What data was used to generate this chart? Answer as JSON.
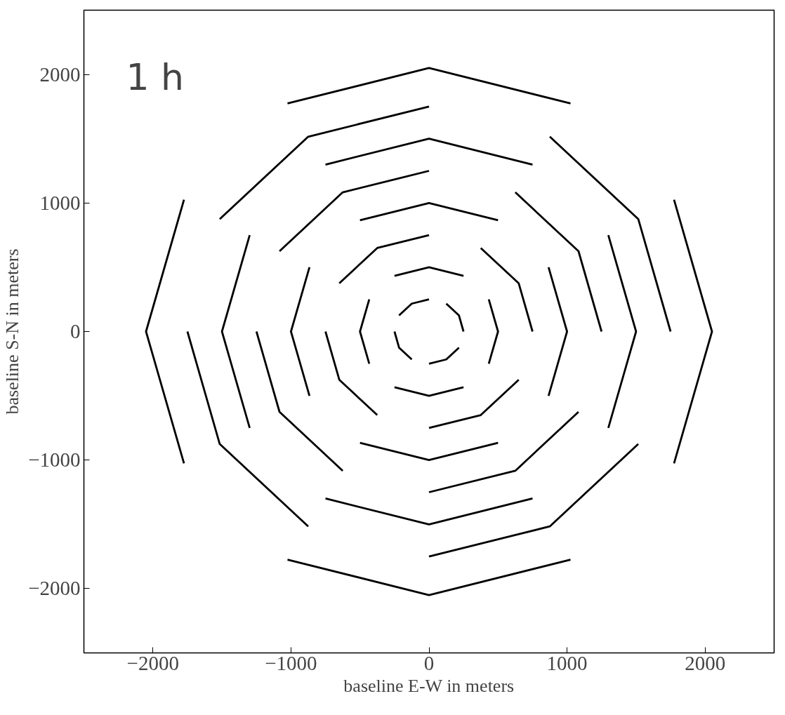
{
  "chart_data": {
    "type": "line",
    "xlabel": "baseline E-W in meters",
    "ylabel": "baseline S-N in meters",
    "annotations": [
      "1 h"
    ],
    "xlim": [
      -2500,
      2500
    ],
    "ylim": [
      -2500,
      2500
    ],
    "xticks": [
      {
        "value": -2000,
        "label": "−2000"
      },
      {
        "value": -1000,
        "label": "−1000"
      },
      0,
      1000,
      2000
    ],
    "yticks": [
      {
        "value": -2000,
        "label": "−2000"
      },
      {
        "value": -1000,
        "label": "−1000"
      },
      0,
      1000,
      2000
    ],
    "grid": false,
    "line_style": "solid",
    "marker": "none",
    "series": [
      {
        "color": "#000000",
        "x": [
          250,
          217,
          125,
          null,
          0,
          -125,
          -217,
          null,
          -250,
          -217,
          -125,
          null,
          0,
          125,
          217
        ],
        "values": [
          0,
          125,
          217,
          null,
          250,
          217,
          125,
          null,
          0,
          -125,
          -217,
          null,
          -250,
          -217,
          -125
        ]
      },
      {
        "color": "#000000",
        "x": [
          250,
          0,
          -250,
          null,
          -433,
          -500,
          -433,
          null,
          -250,
          0,
          250,
          null,
          433,
          500,
          433
        ],
        "values": [
          433,
          500,
          433,
          null,
          250,
          0,
          -250,
          null,
          -433,
          -500,
          -433,
          null,
          -250,
          0,
          250
        ]
      },
      {
        "color": "#000000",
        "x": [
          750,
          650,
          375,
          null,
          0,
          -375,
          -650,
          null,
          -750,
          -650,
          -375,
          null,
          0,
          375,
          650
        ],
        "values": [
          0,
          375,
          650,
          null,
          750,
          650,
          375,
          null,
          0,
          -375,
          -650,
          null,
          -750,
          -650,
          -375
        ]
      },
      {
        "color": "#000000",
        "x": [
          500,
          0,
          -500,
          null,
          -866,
          -1000,
          -866,
          null,
          -500,
          0,
          500,
          null,
          866,
          1000,
          866
        ],
        "values": [
          866,
          1000,
          866,
          null,
          500,
          0,
          -500,
          null,
          -866,
          -1000,
          -866,
          null,
          -500,
          0,
          500
        ]
      },
      {
        "color": "#000000",
        "x": [
          1250,
          1083,
          625,
          null,
          0,
          -625,
          -1083,
          null,
          -1250,
          -1083,
          -625,
          null,
          0,
          625,
          1083
        ],
        "values": [
          0,
          625,
          1083,
          null,
          1250,
          1083,
          625,
          null,
          0,
          -625,
          -1083,
          null,
          -1250,
          -1083,
          -625
        ]
      },
      {
        "color": "#000000",
        "x": [
          750,
          0,
          -750,
          null,
          -1299,
          -1500,
          -1299,
          null,
          -750,
          0,
          750,
          null,
          1299,
          1500,
          1299
        ],
        "values": [
          1299,
          1500,
          1299,
          null,
          750,
          0,
          -750,
          null,
          -1299,
          -1500,
          -1299,
          null,
          -750,
          0,
          750
        ]
      },
      {
        "color": "#000000",
        "x": [
          1750,
          1516,
          875,
          null,
          0,
          -875,
          -1516,
          null,
          -1750,
          -1516,
          -875,
          null,
          0,
          875,
          1516
        ],
        "values": [
          0,
          875,
          1516,
          null,
          1750,
          1516,
          875,
          null,
          0,
          -875,
          -1516,
          null,
          -1750,
          -1516,
          -875
        ]
      },
      {
        "color": "#000000",
        "x": [
          1025,
          0,
          -1025,
          null,
          -1775,
          -2050,
          -1775,
          null,
          -1025,
          0,
          1025,
          null,
          1775,
          2050,
          1775
        ],
        "values": [
          1775,
          2050,
          1775,
          null,
          1025,
          0,
          -1025,
          null,
          -1775,
          -2050,
          -1775,
          null,
          -1025,
          0,
          1025
        ]
      }
    ]
  }
}
